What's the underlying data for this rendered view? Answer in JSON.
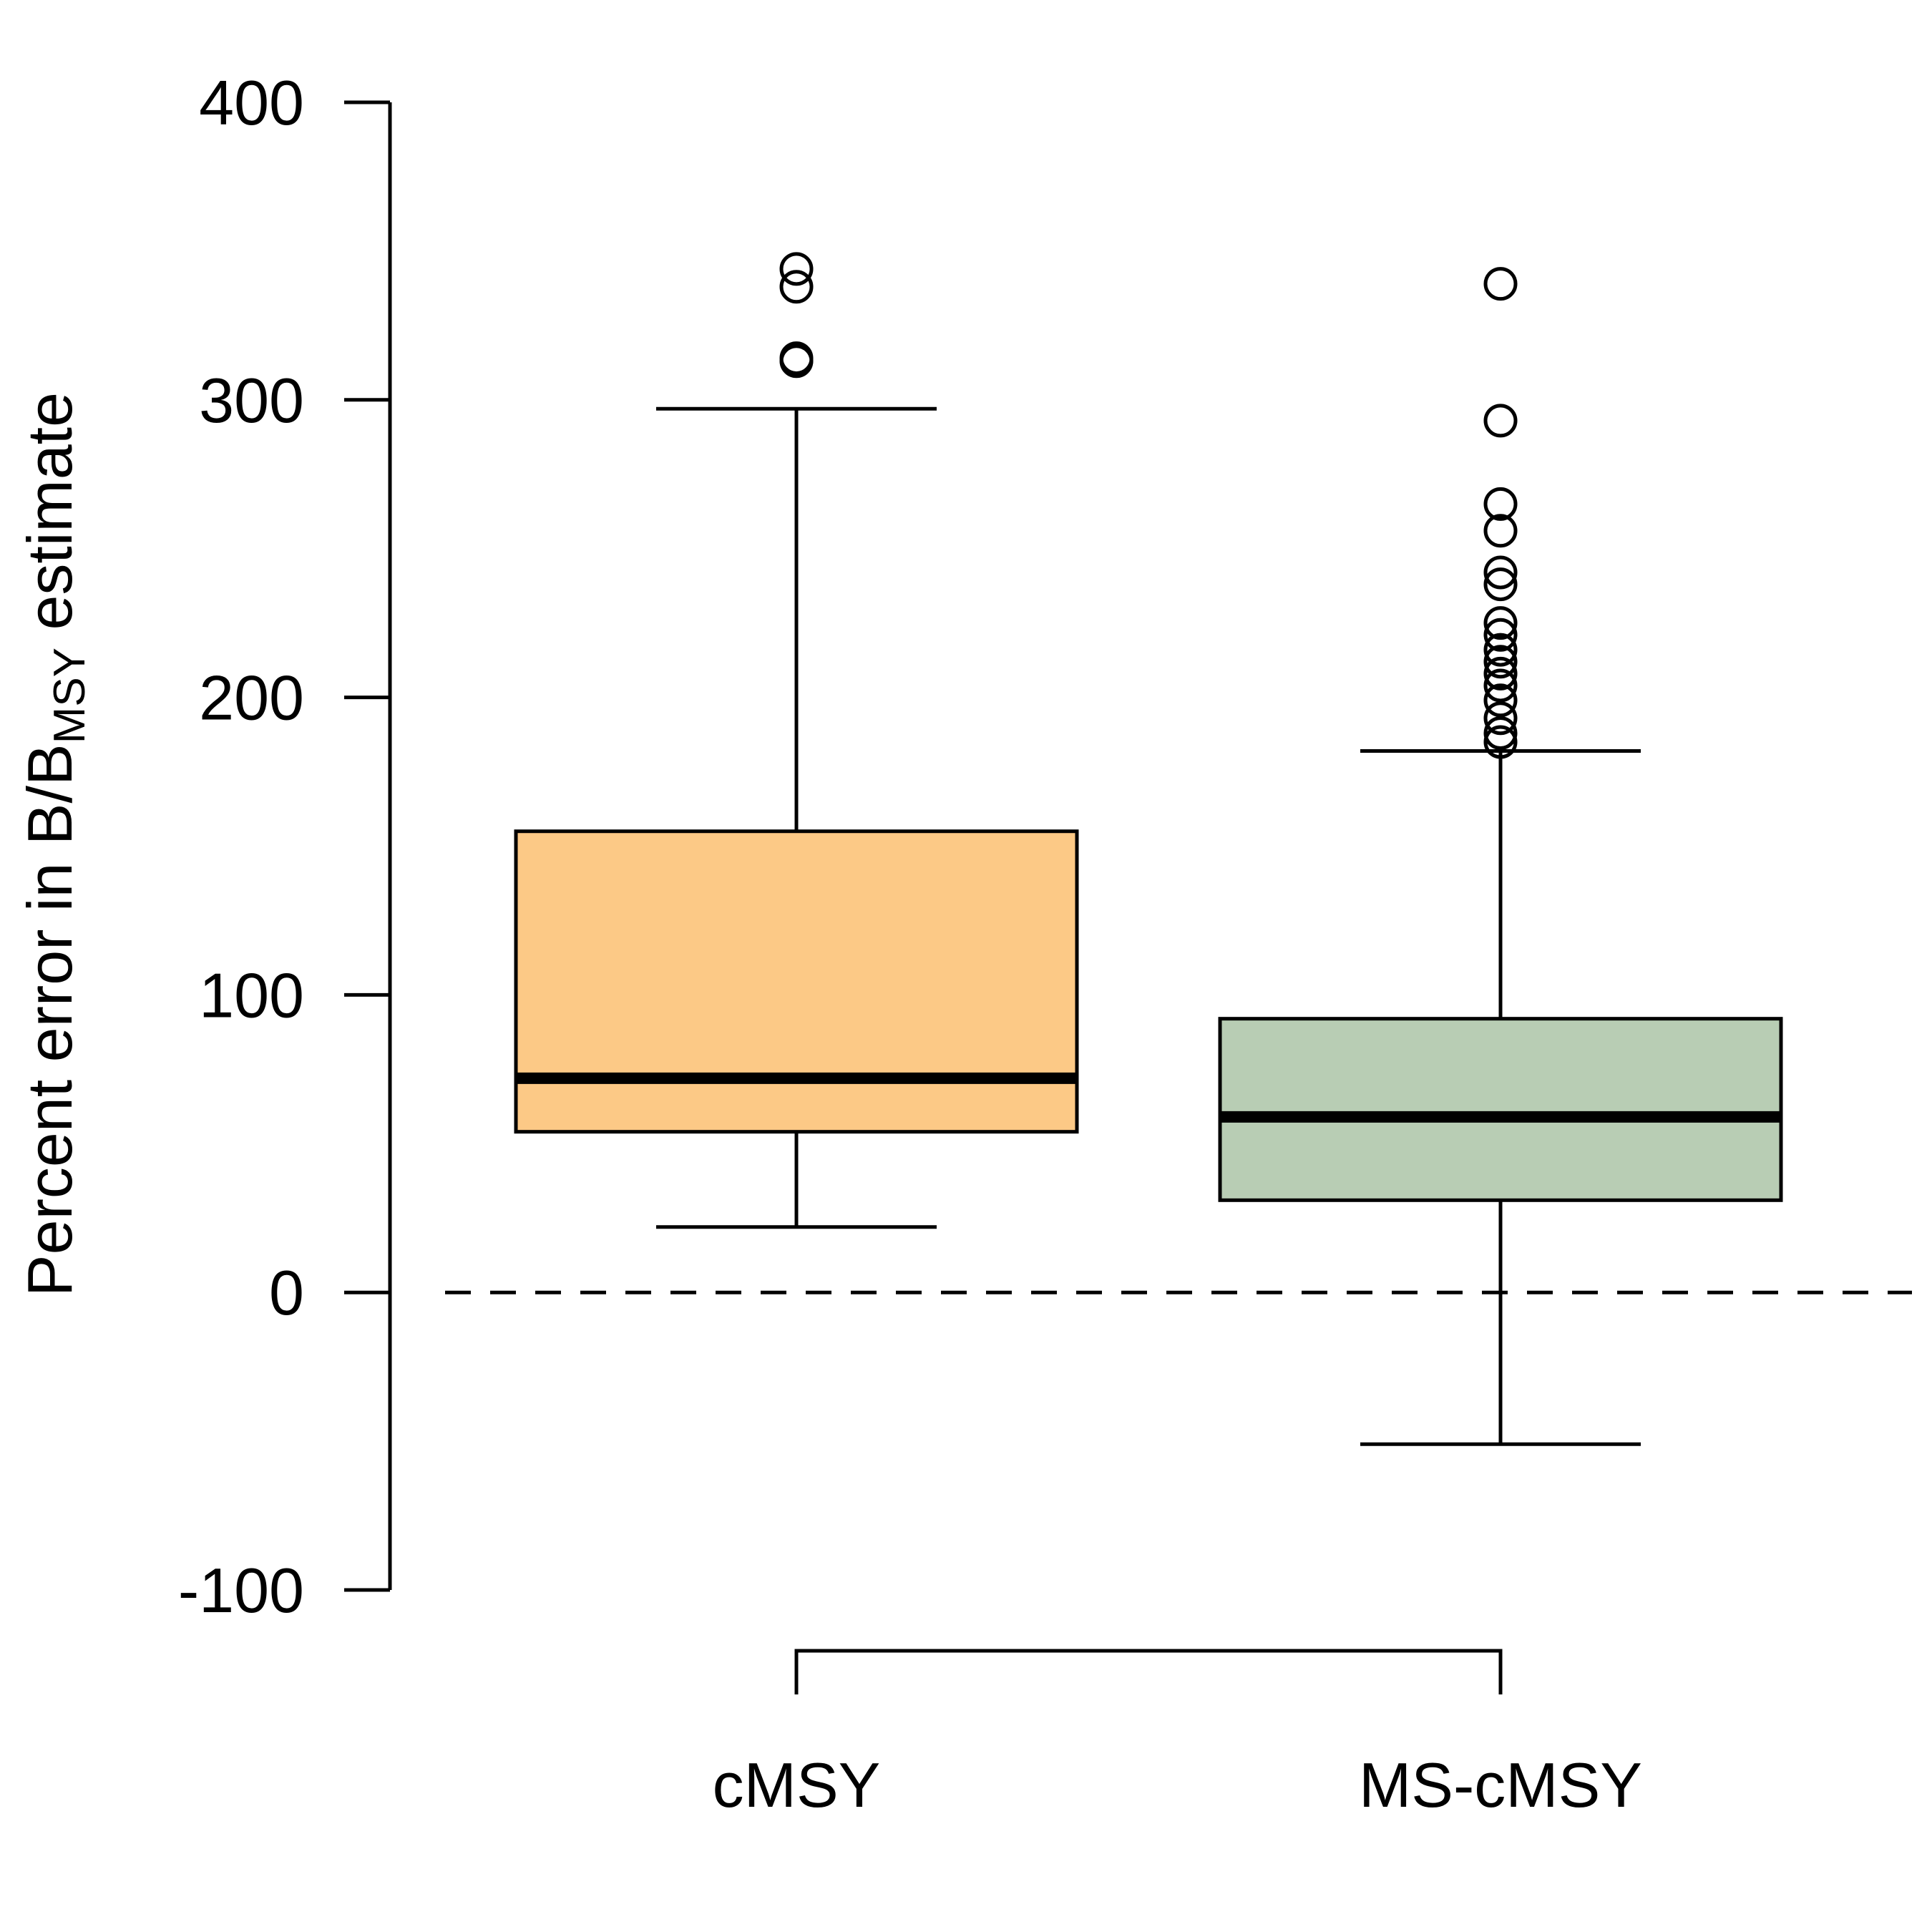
{
  "chart_data": {
    "type": "boxplot",
    "ylabel": {
      "main": "Percent error in B/B",
      "subscript": "MSY",
      "suffix": " estimate"
    },
    "ylim": [
      -100,
      400
    ],
    "yticks": [
      "-100",
      "0",
      "100",
      "200",
      "300",
      "400"
    ],
    "reference_line": {
      "y": 0,
      "style": "dashed"
    },
    "grid": false,
    "categories": [
      "cMSY",
      "MS-cMSY"
    ],
    "boxes": [
      {
        "name": "cMSY",
        "color": "#fcc986",
        "whisker_low": 22,
        "q1": 54,
        "median": 72,
        "q3": 155,
        "whisker_high": 297,
        "outliers": [
          313,
          314,
          338,
          344
        ]
      },
      {
        "name": "MS-cMSY",
        "color": "#b8cdb4",
        "whisker_low": -51,
        "q1": 31,
        "median": 59,
        "q3": 92,
        "whisker_high": 182,
        "outliers": [
          185,
          188,
          193,
          199,
          204,
          208,
          212,
          216,
          221,
          225,
          238,
          242,
          256,
          265,
          293,
          339
        ]
      }
    ],
    "comparison_bracket": {
      "from": "cMSY",
      "to": "MS-cMSY"
    }
  }
}
